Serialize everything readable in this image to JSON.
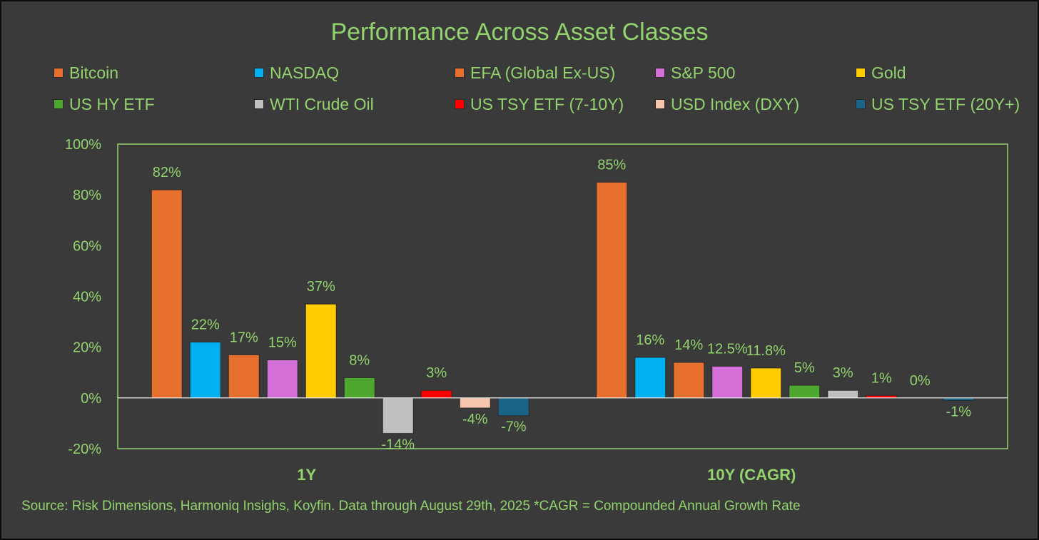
{
  "chart_data": {
    "type": "bar",
    "title": "Performance Across Asset Classes",
    "categories": [
      "1Y",
      "10Y (CAGR)"
    ],
    "ylim": [
      -20,
      100
    ],
    "yticks": [
      -20,
      0,
      20,
      40,
      60,
      80,
      100
    ],
    "ytick_labels": [
      "-20%",
      "0%",
      "20%",
      "40%",
      "60%",
      "80%",
      "100%"
    ],
    "gridlines": true,
    "legend_position": "top",
    "series": [
      {
        "name": "Bitcoin",
        "color": "#e8702e",
        "values": [
          82,
          85
        ],
        "labels": [
          "82%",
          "85%"
        ]
      },
      {
        "name": "NASDAQ",
        "color": "#00b0f0",
        "values": [
          22,
          16
        ],
        "labels": [
          "22%",
          "16%"
        ]
      },
      {
        "name": "EFA (Global Ex-US)",
        "color": "#e8702e",
        "values": [
          17,
          14
        ],
        "labels": [
          "17%",
          "14%"
        ]
      },
      {
        "name": "S&P 500",
        "color": "#d56fd8",
        "values": [
          15,
          12.5
        ],
        "labels": [
          "15%",
          "12.5%"
        ]
      },
      {
        "name": "Gold",
        "color": "#ffcc00",
        "values": [
          37,
          11.8
        ],
        "labels": [
          "37%",
          "11.8%"
        ]
      },
      {
        "name": "US HY ETF",
        "color": "#4ea72e",
        "values": [
          8,
          5
        ],
        "labels": [
          "8%",
          "5%"
        ]
      },
      {
        "name": "WTI Crude Oil",
        "color": "#bfbfbf",
        "values": [
          -14,
          3
        ],
        "labels": [
          "-14%",
          "3%"
        ]
      },
      {
        "name": "US TSY ETF (7-10Y)",
        "color": "#ff0000",
        "values": [
          3,
          1
        ],
        "labels": [
          "3%",
          "1%"
        ]
      },
      {
        "name": "USD Index (DXY)",
        "color": "#f6c6ad",
        "values": [
          -4,
          0
        ],
        "labels": [
          "-4%",
          "0%"
        ]
      },
      {
        "name": "US TSY ETF (20Y+)",
        "color": "#1a6587",
        "values": [
          -7,
          -1
        ],
        "labels": [
          "-7%",
          "-1%"
        ]
      }
    ]
  },
  "source_note": "Source: Risk Dimensions, Harmoniq Insighs, Koyfin. Data through August 29th, 2025 *CAGR = Compounded Annual Growth Rate"
}
